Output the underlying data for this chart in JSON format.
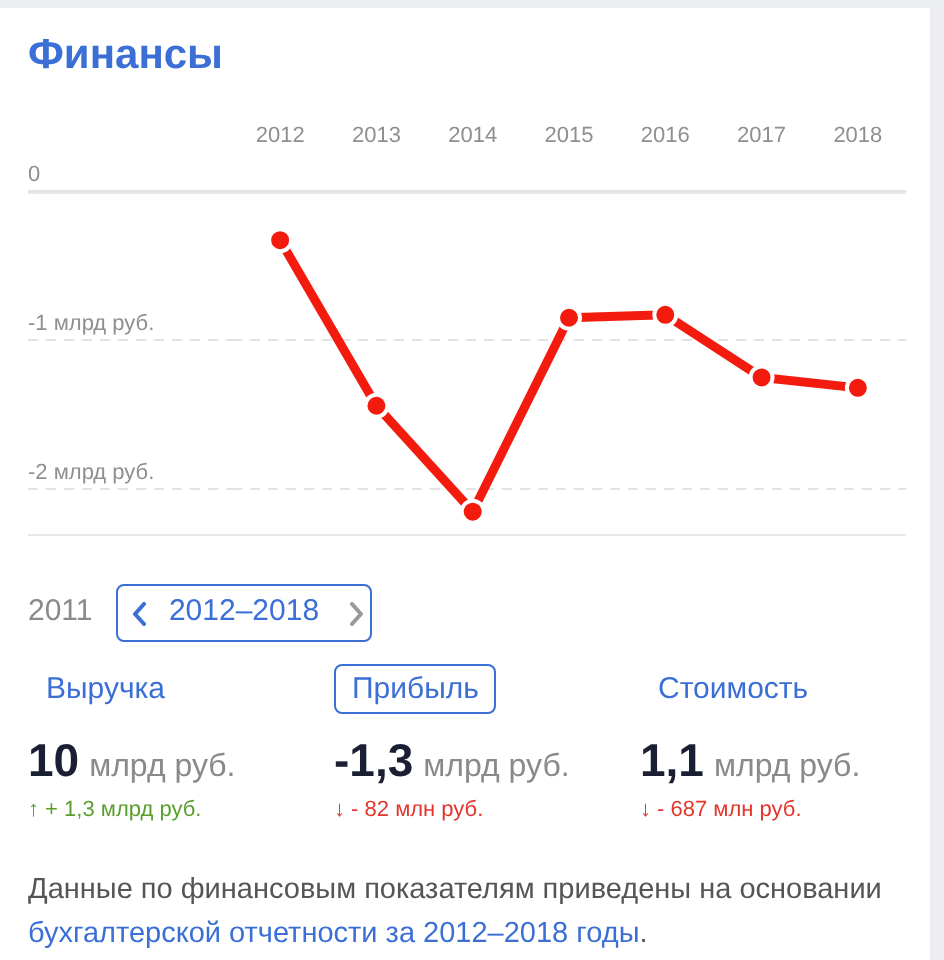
{
  "chart_data": [
    {
      "type": "line",
      "title": "Финансы",
      "categories": [
        "2012",
        "2013",
        "2014",
        "2015",
        "2016",
        "2017",
        "2018"
      ],
      "values": [
        -0.33,
        -1.44,
        -2.15,
        -0.85,
        -0.83,
        -1.25,
        -1.32
      ],
      "color": "#f21b0d",
      "ylim": [
        -2.3,
        0
      ],
      "yticks": [
        0,
        {
          "value": -1,
          "label": "-1 млрд руб."
        },
        {
          "value": -2,
          "label": "-2 млрд руб."
        }
      ],
      "grid": "y",
      "legend": false,
      "marker": "circle",
      "line_style": "solid"
    },
    {
      "type": "other",
      "annotations": [
        "2011",
        "2012–2018",
        "Выручка",
        "10",
        "млрд руб.",
        "↑ + 1,3 млрд руб.",
        "Прибыль",
        "-1,3",
        "млрд руб.",
        "↓ - 82 млн руб.",
        "Стоимость",
        "1,1",
        "млрд руб.",
        "↓ - 687 млн руб.",
        "Данные по финансовым показателям приведены на основании",
        "бухгалтерской отчетности за 2012–2018 годы",
        "."
      ]
    }
  ]
}
